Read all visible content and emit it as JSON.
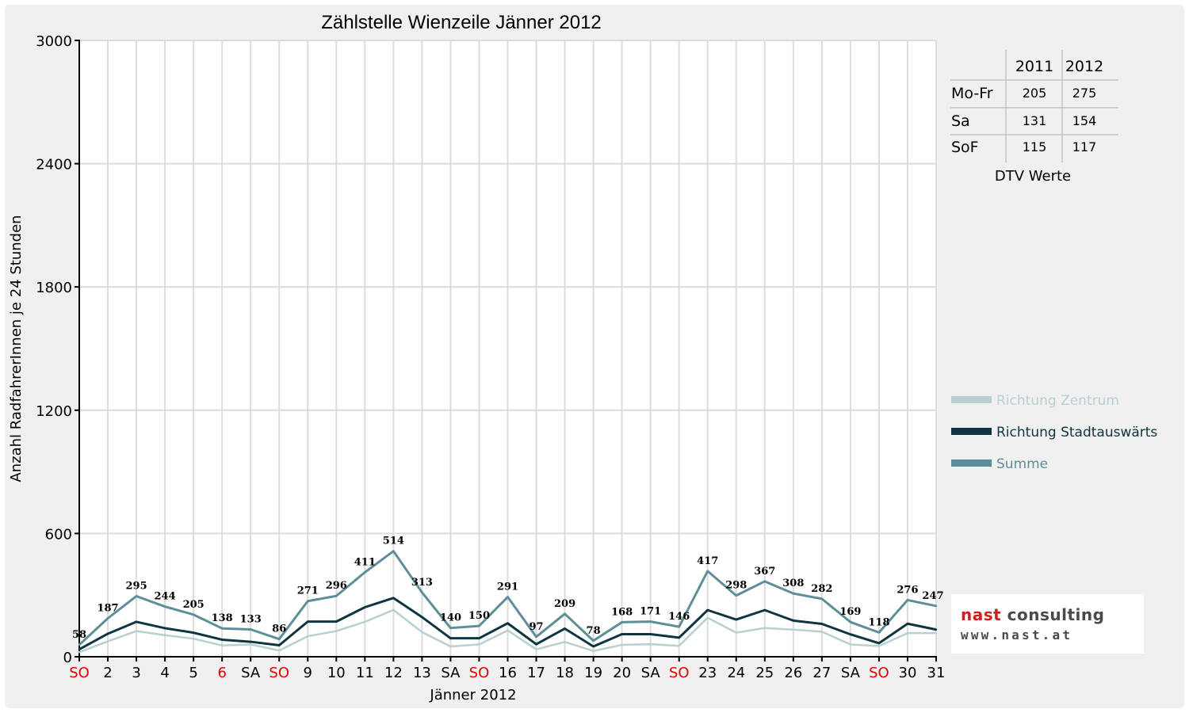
{
  "chart_data": {
    "type": "line",
    "title": "Zählstelle Wienzeile Jänner 2012",
    "xlabel": "Jänner 2012",
    "ylabel": "Anzahl RadfahrerInnen je 24 Stunden",
    "ylim": [
      0,
      3000
    ],
    "yticks": [
      0,
      600,
      1200,
      1800,
      2400,
      3000
    ],
    "grid": true,
    "legend_position": "right",
    "categories": [
      "SO",
      "2",
      "3",
      "4",
      "5",
      "6",
      "SA",
      "SO",
      "9",
      "10",
      "11",
      "12",
      "13",
      "SA",
      "SO",
      "16",
      "17",
      "18",
      "19",
      "20",
      "SA",
      "SO",
      "23",
      "24",
      "25",
      "26",
      "27",
      "SA",
      "SO",
      "30",
      "31"
    ],
    "highlight_categories": [
      0,
      5,
      7,
      14,
      21,
      28
    ],
    "highlight_color": "#e00000",
    "series": [
      {
        "name": "Richtung Zentrum",
        "color": "#b8d0d2",
        "values": [
          22,
          75,
          125,
          105,
          88,
          55,
          60,
          30,
          100,
          125,
          170,
          228,
          120,
          50,
          60,
          128,
          36,
          72,
          28,
          58,
          61,
          53,
          190,
          117,
          140,
          132,
          122,
          60,
          52,
          115,
          115
        ]
      },
      {
        "name": "Richtung Stadtauswärts",
        "color": "#0f3540",
        "values": [
          36,
          112,
          170,
          139,
          117,
          83,
          73,
          56,
          171,
          171,
          241,
          286,
          193,
          90,
          90,
          163,
          61,
          137,
          50,
          110,
          110,
          93,
          227,
          181,
          227,
          176,
          160,
          109,
          66,
          161,
          132
        ]
      },
      {
        "name": "Summe",
        "color": "#5e8f98",
        "values": [
          58,
          187,
          295,
          244,
          205,
          138,
          133,
          86,
          271,
          296,
          411,
          514,
          313,
          140,
          150,
          291,
          97,
          209,
          78,
          168,
          171,
          146,
          417,
          298,
          367,
          308,
          282,
          169,
          118,
          276,
          247
        ],
        "labels": [
          "58",
          "187",
          "295",
          "244",
          "205",
          "138",
          "133",
          "86",
          "271",
          "296",
          "411",
          "514",
          "313",
          "140",
          "150",
          "291",
          "97",
          "209",
          "78",
          "168",
          "171",
          "146",
          "417",
          "298",
          "367",
          "308",
          "282",
          "169",
          "118",
          "276",
          "247"
        ]
      }
    ]
  },
  "dtv_table": {
    "caption": "DTV Werte",
    "columns": [
      "2011",
      "2012"
    ],
    "rows": [
      {
        "label": "Mo-Fr",
        "values": [
          "205",
          "275"
        ]
      },
      {
        "label": "Sa",
        "values": [
          "131",
          "154"
        ]
      },
      {
        "label": "SoF",
        "values": [
          "115",
          "117"
        ]
      }
    ]
  },
  "logo": {
    "line1_part1": "nast",
    "line1_part2": " consulting",
    "line2": "www.nast.at",
    "color1": "#cc1f1f",
    "color2": "#4a4a4a"
  }
}
